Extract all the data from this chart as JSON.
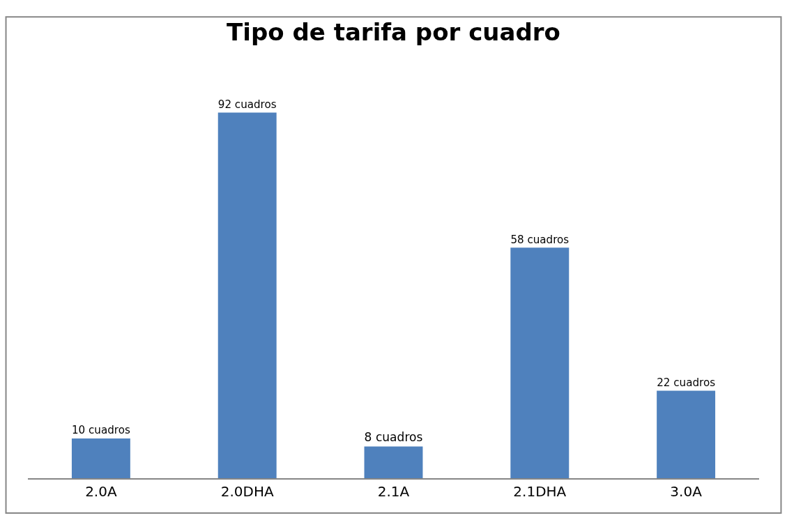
{
  "chart_data": {
    "type": "bar",
    "title": "Tipo de tarifa por cuadro",
    "categories": [
      "2.0A",
      "2.0DHA",
      "2.1A",
      "2.1DHA",
      "3.0A"
    ],
    "values": [
      10,
      92,
      8,
      58,
      22
    ],
    "value_labels": [
      "10 cuadros",
      "92 cuadros",
      "8 cuadros",
      "58 cuadros",
      "22 cuadros"
    ],
    "color": "#4f81bd",
    "tick_labels": "x"
  }
}
